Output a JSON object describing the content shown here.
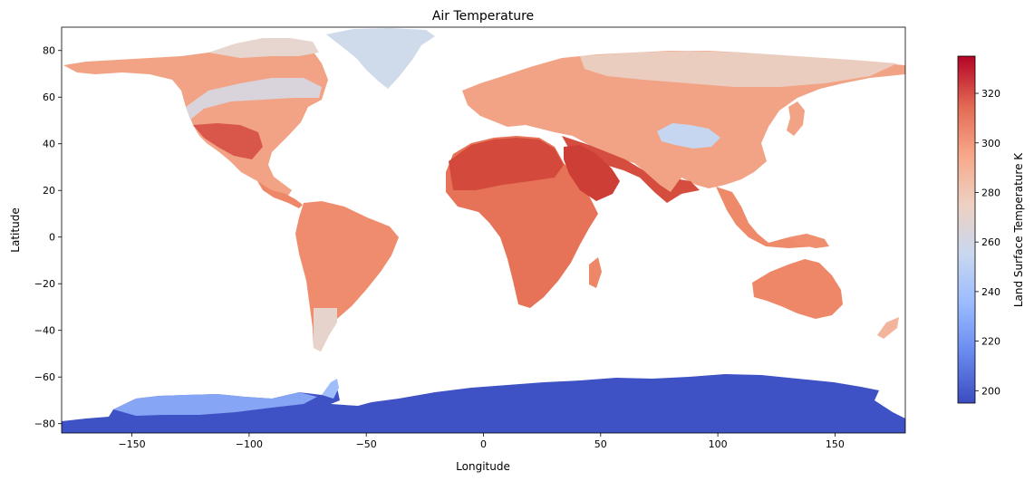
{
  "figure": {
    "title": "Air Temperature",
    "xlabel": "Longitude",
    "ylabel": "Latitude",
    "colorbar_label": "Land Surface Temperature K"
  },
  "chart_data": {
    "type": "heatmap",
    "title": "Air Temperature",
    "xlabel": "Longitude",
    "ylabel": "Latitude",
    "xlim": [
      -180,
      180
    ],
    "ylim": [
      -84,
      90
    ],
    "xticks": [
      -150,
      -100,
      -50,
      0,
      50,
      100,
      150
    ],
    "xtick_labels": [
      "−150",
      "−100",
      "−50",
      "0",
      "50",
      "100",
      "150"
    ],
    "yticks": [
      80,
      60,
      40,
      20,
      0,
      -20,
      -40,
      -60,
      -80
    ],
    "ytick_labels": [
      "80",
      "60",
      "40",
      "20",
      "0",
      "−20",
      "−40",
      "−60",
      "−80"
    ],
    "colormap": "coolwarm",
    "colorbar": {
      "label": "Land Surface Temperature K",
      "range": [
        195,
        335
      ],
      "ticks": [
        200,
        220,
        240,
        260,
        280,
        300,
        320
      ],
      "position": "right",
      "stops": [
        "#3b4cc0",
        "#6889ee",
        "#9abbff",
        "#c9d7f0",
        "#edd1c2",
        "#f7a889",
        "#e26952",
        "#b40426"
      ]
    },
    "background": "#ffffff",
    "regions": [
      {
        "name": "North America",
        "temp_K": 290,
        "color": "#f2a385"
      },
      {
        "name": "Greenland",
        "temp_K": 258,
        "color": "#cfdaea"
      },
      {
        "name": "South America",
        "temp_K": 293,
        "color": "#f08c6e"
      },
      {
        "name": "Europe",
        "temp_K": 288,
        "color": "#f2a385"
      },
      {
        "name": "Asia",
        "temp_K": 296,
        "color": "#ec9374"
      },
      {
        "name": "Tibetan Plateau",
        "temp_K": 255,
        "color": "#c6d6f1"
      },
      {
        "name": "Arabia",
        "temp_K": 322,
        "color": "#cc3e36"
      },
      {
        "name": "Sahara",
        "temp_K": 318,
        "color": "#d34a3c"
      },
      {
        "name": "Africa",
        "temp_K": 305,
        "color": "#e67357"
      },
      {
        "name": "Australia",
        "temp_K": 300,
        "color": "#ee8768"
      },
      {
        "name": "Antarctica",
        "temp_K": 205,
        "color": "#3e51c5"
      }
    ]
  }
}
